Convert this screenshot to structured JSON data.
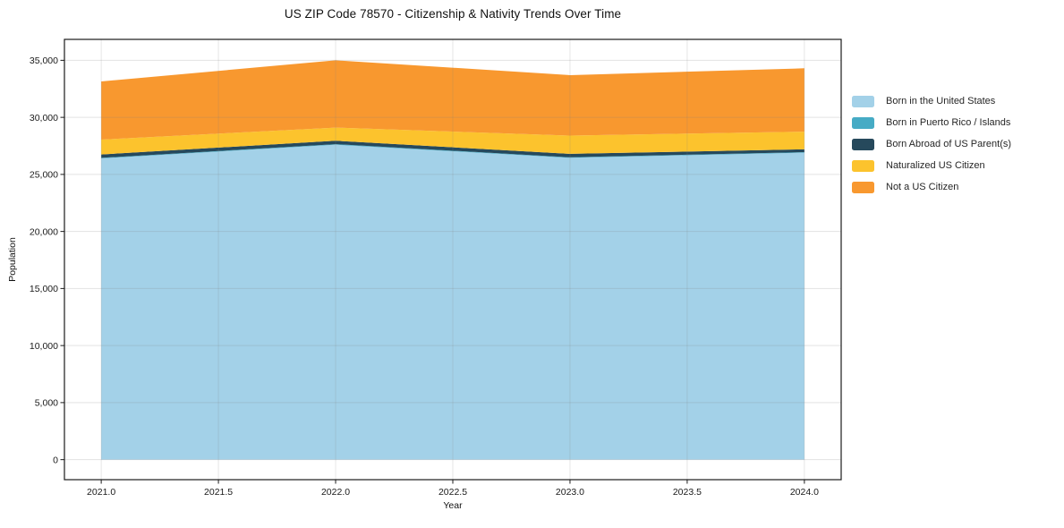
{
  "chart": {
    "title": "US ZIP Code 78570 - Citizenship & Nativity Trends Over Time",
    "xlabel": "Year",
    "ylabel": "Population"
  },
  "chart_data": {
    "type": "area",
    "stacked": true,
    "title": "US ZIP Code 78570 - Citizenship & Nativity Trends Over Time",
    "xlabel": "Year",
    "ylabel": "Population",
    "x": [
      2021,
      2022,
      2023,
      2024
    ],
    "series": [
      {
        "name": "Born in the United States",
        "color": "#a3d1e8",
        "values": [
          26400,
          27600,
          26450,
          26900
        ]
      },
      {
        "name": "Born in Puerto Rico / Islands",
        "color": "#46abc5",
        "values": [
          50,
          50,
          50,
          50
        ]
      },
      {
        "name": "Born Abroad of US Parent(s)",
        "color": "#26495c",
        "values": [
          300,
          300,
          300,
          250
        ]
      },
      {
        "name": "Naturalized US Citizen",
        "color": "#fcc32d",
        "values": [
          1300,
          1150,
          1600,
          1550
        ]
      },
      {
        "name": "Not a US Citizen",
        "color": "#f8982f",
        "values": [
          5100,
          5900,
          5300,
          5550
        ]
      }
    ],
    "stacked_totals": [
      33150,
      35000,
      33700,
      34300
    ],
    "x_ticks": [
      2021.0,
      2021.5,
      2022.0,
      2022.5,
      2023.0,
      2023.5,
      2024.0
    ],
    "x_tick_labels": [
      "2021.0",
      "2021.5",
      "2022.0",
      "2022.5",
      "2023.0",
      "2023.5",
      "2024.0"
    ],
    "y_ticks": [
      0,
      5000,
      10000,
      15000,
      20000,
      25000,
      30000,
      35000
    ],
    "y_tick_labels": [
      "0",
      "5,000",
      "10,000",
      "15,000",
      "20,000",
      "25,000",
      "30,000",
      "35,000"
    ],
    "xlim": [
      2020.843,
      2024.157
    ],
    "ylim": [
      -1754,
      36834
    ],
    "grid": true,
    "grid_color": "#7f7f7f",
    "grid_alpha": 0.22,
    "spine_color": "#1a1a1a",
    "tick_label_color": "#1a1a1a",
    "background": "#ffffff",
    "legend_position": "right"
  }
}
